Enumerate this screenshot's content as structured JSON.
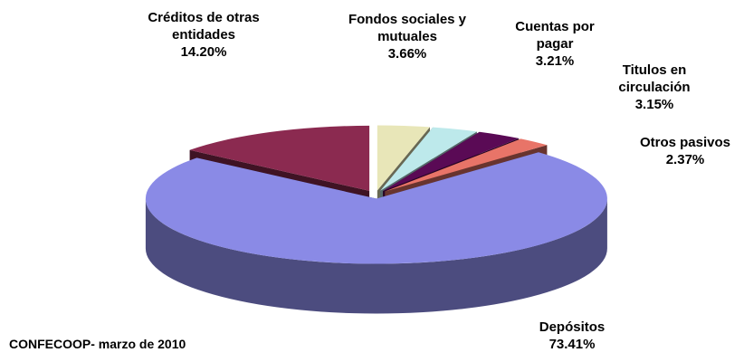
{
  "chart_data": {
    "type": "pie",
    "source": "CONFECOOP- marzo de 2010",
    "categories": [
      "Fondos sociales y mutuales",
      "Cuentas por pagar",
      "Titulos en circulación",
      "Otros pasivos",
      "Depósitos",
      "Créditos de otras entidades"
    ],
    "values": [
      3.66,
      3.21,
      3.15,
      2.37,
      73.41,
      14.2
    ],
    "value_labels": [
      "3.66%",
      "3.21%",
      "3.15%",
      "2.37%",
      "73.41%",
      "14.20%"
    ],
    "colors": [
      "#e8e6b8",
      "#bde9eb",
      "#5a0a55",
      "#e87468",
      "#8a8ae6",
      "#8b2a50"
    ]
  }
}
